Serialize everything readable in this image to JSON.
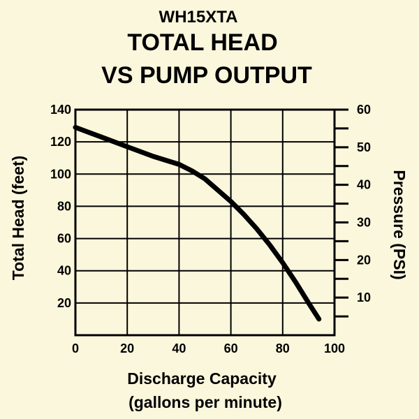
{
  "chart_data": {
    "type": "line",
    "model": "WH15XTA",
    "title_lines": [
      "TOTAL HEAD",
      "VS PUMP OUTPUT"
    ],
    "xlabel_lines": [
      "Discharge Capacity",
      "(gallons per minute)"
    ],
    "ylabel": "Total Head (feet)",
    "y2label": "Pressure (PSI)",
    "xlim": [
      0,
      100
    ],
    "ylim": [
      0,
      140
    ],
    "y2lim": [
      0,
      60
    ],
    "x_ticks": [
      "0",
      "20",
      "40",
      "60",
      "80",
      "100"
    ],
    "y_ticks": [
      "20",
      "40",
      "60",
      "80",
      "100",
      "120",
      "140"
    ],
    "y2_ticks": [
      "10",
      "20",
      "30",
      "40",
      "50",
      "60"
    ],
    "grid": true,
    "series": [
      {
        "x": [
          0,
          10,
          20,
          30,
          40,
          45,
          50,
          55,
          60,
          65,
          70,
          75,
          80,
          85,
          90,
          94
        ],
        "y": [
          129,
          123,
          117,
          111,
          106,
          102,
          97,
          90,
          83,
          75,
          66,
          56,
          45,
          33,
          20,
          10
        ]
      }
    ],
    "colors": {
      "background": "#fbf7dc",
      "line": "#000000",
      "grid": "#000000"
    }
  }
}
